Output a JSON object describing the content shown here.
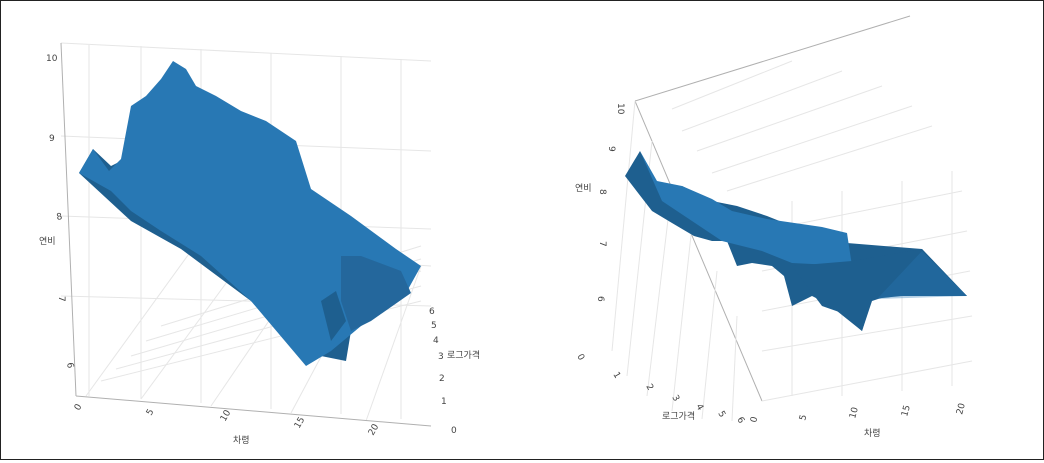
{
  "chart_data": [
    {
      "type": "surface3d",
      "view": "front-oblique",
      "x_axis": {
        "label": "차령",
        "ticks": [
          "0",
          "5",
          "10",
          "15",
          "20"
        ]
      },
      "y_axis": {
        "label": "로그가격",
        "ticks": [
          "0",
          "1",
          "2",
          "3",
          "4",
          "5",
          "6"
        ]
      },
      "z_axis": {
        "label": "연비",
        "ticks": [
          "6",
          "7",
          "8",
          "9",
          "10"
        ]
      },
      "surface_color": "#2878b4",
      "surface_shade_color": "#1e5f8f"
    },
    {
      "type": "surface3d",
      "view": "top-oblique",
      "x_axis": {
        "label": "차령",
        "ticks": [
          "0",
          "5",
          "10",
          "15",
          "20"
        ]
      },
      "y_axis": {
        "label": "로그가격",
        "ticks": [
          "1",
          "2",
          "3",
          "4",
          "5",
          "6"
        ]
      },
      "z_axis": {
        "label": "연비",
        "ticks": [
          "0",
          "6",
          "7",
          "8",
          "9",
          "10"
        ]
      },
      "surface_color": "#2878b4",
      "surface_shade_color": "#1e5f8f"
    }
  ]
}
